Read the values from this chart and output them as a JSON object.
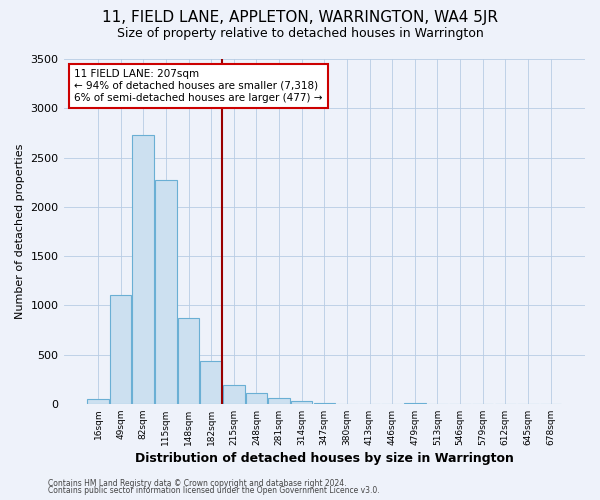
{
  "title": "11, FIELD LANE, APPLETON, WARRINGTON, WA4 5JR",
  "subtitle": "Size of property relative to detached houses in Warrington",
  "xlabel": "Distribution of detached houses by size in Warrington",
  "ylabel": "Number of detached properties",
  "bin_labels": [
    "16sqm",
    "49sqm",
    "82sqm",
    "115sqm",
    "148sqm",
    "182sqm",
    "215sqm",
    "248sqm",
    "281sqm",
    "314sqm",
    "347sqm",
    "380sqm",
    "413sqm",
    "446sqm",
    "479sqm",
    "513sqm",
    "546sqm",
    "579sqm",
    "612sqm",
    "645sqm",
    "678sqm"
  ],
  "bar_values": [
    50,
    1100,
    2730,
    2270,
    870,
    430,
    195,
    105,
    55,
    30,
    10,
    0,
    0,
    0,
    5,
    0,
    0,
    0,
    0,
    0,
    0
  ],
  "bar_color": "#cce0f0",
  "bar_edge_color": "#6aafd4",
  "vline_color": "#990000",
  "annotation_title": "11 FIELD LANE: 207sqm",
  "annotation_line1": "← 94% of detached houses are smaller (7,318)",
  "annotation_line2": "6% of semi-detached houses are larger (477) →",
  "annotation_box_color": "#ffffff",
  "annotation_box_edge_color": "#cc0000",
  "footer1": "Contains HM Land Registry data © Crown copyright and database right 2024.",
  "footer2": "Contains public sector information licensed under the Open Government Licence v3.0.",
  "background_color": "#eef2fa",
  "plot_bg_color": "#eef2fa",
  "ylim": [
    0,
    3500
  ],
  "title_fontsize": 11,
  "subtitle_fontsize": 9,
  "vline_bin_index": 6
}
